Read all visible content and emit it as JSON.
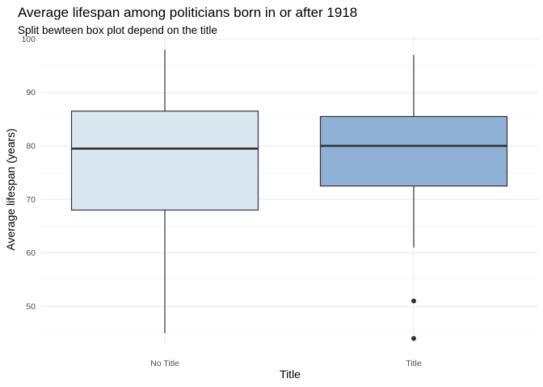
{
  "title": "Average lifespan among politicians born in or after 1918",
  "subtitle": "Split bewteen box plot depend on the title",
  "chart_data": {
    "type": "box",
    "title": "Average lifespan among politicians born in or after 1918",
    "subtitle": "Split bewteen box plot depend on the title",
    "xlabel": "Title",
    "ylabel": "Average lifespan (years)",
    "ylim": [
      43.2,
      100.5
    ],
    "yticks": [
      50,
      60,
      70,
      80,
      90,
      100
    ],
    "grid": true,
    "legend": "none",
    "categories": [
      "No Title",
      "Title"
    ],
    "boxes": [
      {
        "category": "No Title",
        "min": 45,
        "q1": 68,
        "median": 79.5,
        "q3": 86.5,
        "max": 98,
        "outliers": [],
        "fill": "#d9e7f1"
      },
      {
        "category": "Title",
        "min": 61,
        "q1": 72.5,
        "median": 80,
        "q3": 85.5,
        "max": 97,
        "outliers": [
          51,
          44
        ],
        "fill": "#8fb1d6"
      }
    ]
  }
}
